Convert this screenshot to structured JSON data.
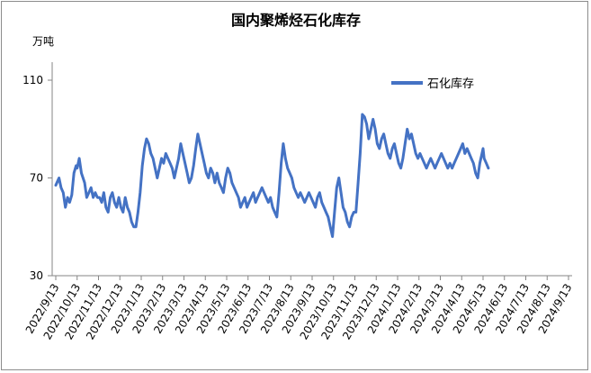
{
  "chart_data": {
    "type": "line",
    "title": "国内聚烯烃石化库存",
    "unit_label": "万吨",
    "xlabel": "",
    "ylabel": "",
    "ylim": [
      30,
      110
    ],
    "yticks": [
      30,
      70,
      110
    ],
    "grid": false,
    "legend_position": "top-right",
    "categories": [
      "2022/9/13",
      "2022/10/13",
      "2022/11/13",
      "2022/12/13",
      "2023/1/13",
      "2023/2/13",
      "2023/3/13",
      "2023/4/13",
      "2023/5/13",
      "2023/6/13",
      "2023/7/13",
      "2023/8/13",
      "2023/9/13",
      "2023/10/13",
      "2023/11/13",
      "2023/12/13",
      "2024/1/13",
      "2024/2/13",
      "2024/3/13",
      "2024/4/13",
      "2024/5/13",
      "2024/6/13",
      "2024/7/13",
      "2024/8/13",
      "2024/9/13"
    ],
    "series": [
      {
        "name": "石化库存",
        "color": "#4472c4",
        "points": [
          [
            0.0,
            67
          ],
          [
            0.15,
            70
          ],
          [
            0.25,
            66
          ],
          [
            0.35,
            64
          ],
          [
            0.45,
            58
          ],
          [
            0.55,
            62
          ],
          [
            0.65,
            60
          ],
          [
            0.75,
            63
          ],
          [
            0.85,
            72
          ],
          [
            0.95,
            75
          ],
          [
            1.0,
            74
          ],
          [
            1.1,
            78
          ],
          [
            1.2,
            72
          ],
          [
            1.35,
            68
          ],
          [
            1.45,
            62
          ],
          [
            1.55,
            64
          ],
          [
            1.65,
            66
          ],
          [
            1.75,
            62
          ],
          [
            1.85,
            64
          ],
          [
            1.95,
            62
          ],
          [
            2.05,
            62
          ],
          [
            2.15,
            60
          ],
          [
            2.25,
            64
          ],
          [
            2.35,
            58
          ],
          [
            2.45,
            56
          ],
          [
            2.55,
            62
          ],
          [
            2.65,
            64
          ],
          [
            2.75,
            60
          ],
          [
            2.85,
            58
          ],
          [
            2.95,
            62
          ],
          [
            3.05,
            58
          ],
          [
            3.15,
            56
          ],
          [
            3.25,
            62
          ],
          [
            3.35,
            58
          ],
          [
            3.45,
            56
          ],
          [
            3.55,
            52
          ],
          [
            3.65,
            50
          ],
          [
            3.75,
            50
          ],
          [
            3.85,
            56
          ],
          [
            3.95,
            64
          ],
          [
            4.05,
            75
          ],
          [
            4.15,
            82
          ],
          [
            4.25,
            86
          ],
          [
            4.35,
            84
          ],
          [
            4.45,
            80
          ],
          [
            4.55,
            78
          ],
          [
            4.65,
            74
          ],
          [
            4.75,
            70
          ],
          [
            4.85,
            74
          ],
          [
            4.95,
            78
          ],
          [
            5.05,
            76
          ],
          [
            5.15,
            80
          ],
          [
            5.25,
            78
          ],
          [
            5.35,
            76
          ],
          [
            5.45,
            74
          ],
          [
            5.55,
            70
          ],
          [
            5.65,
            74
          ],
          [
            5.75,
            78
          ],
          [
            5.85,
            84
          ],
          [
            5.95,
            80
          ],
          [
            6.05,
            76
          ],
          [
            6.15,
            72
          ],
          [
            6.25,
            68
          ],
          [
            6.35,
            70
          ],
          [
            6.45,
            75
          ],
          [
            6.55,
            82
          ],
          [
            6.65,
            88
          ],
          [
            6.75,
            84
          ],
          [
            6.85,
            80
          ],
          [
            6.95,
            76
          ],
          [
            7.05,
            72
          ],
          [
            7.15,
            70
          ],
          [
            7.25,
            74
          ],
          [
            7.35,
            72
          ],
          [
            7.45,
            68
          ],
          [
            7.55,
            72
          ],
          [
            7.65,
            68
          ],
          [
            7.75,
            66
          ],
          [
            7.85,
            64
          ],
          [
            7.95,
            70
          ],
          [
            8.05,
            74
          ],
          [
            8.15,
            72
          ],
          [
            8.25,
            68
          ],
          [
            8.35,
            66
          ],
          [
            8.45,
            64
          ],
          [
            8.55,
            62
          ],
          [
            8.65,
            58
          ],
          [
            8.75,
            60
          ],
          [
            8.85,
            62
          ],
          [
            8.95,
            58
          ],
          [
            9.05,
            60
          ],
          [
            9.15,
            62
          ],
          [
            9.25,
            64
          ],
          [
            9.35,
            60
          ],
          [
            9.45,
            62
          ],
          [
            9.55,
            64
          ],
          [
            9.65,
            66
          ],
          [
            9.75,
            64
          ],
          [
            9.85,
            62
          ],
          [
            9.95,
            60
          ],
          [
            10.05,
            62
          ],
          [
            10.15,
            58
          ],
          [
            10.25,
            56
          ],
          [
            10.35,
            54
          ],
          [
            10.45,
            64
          ],
          [
            10.55,
            76
          ],
          [
            10.65,
            84
          ],
          [
            10.75,
            78
          ],
          [
            10.85,
            74
          ],
          [
            10.95,
            72
          ],
          [
            11.05,
            70
          ],
          [
            11.15,
            66
          ],
          [
            11.25,
            64
          ],
          [
            11.35,
            62
          ],
          [
            11.45,
            64
          ],
          [
            11.55,
            62
          ],
          [
            11.65,
            60
          ],
          [
            11.75,
            62
          ],
          [
            11.85,
            64
          ],
          [
            11.95,
            62
          ],
          [
            12.05,
            60
          ],
          [
            12.15,
            58
          ],
          [
            12.25,
            62
          ],
          [
            12.35,
            64
          ],
          [
            12.45,
            60
          ],
          [
            12.55,
            58
          ],
          [
            12.65,
            56
          ],
          [
            12.75,
            54
          ],
          [
            12.85,
            50
          ],
          [
            12.95,
            46
          ],
          [
            13.05,
            56
          ],
          [
            13.15,
            66
          ],
          [
            13.25,
            70
          ],
          [
            13.35,
            64
          ],
          [
            13.45,
            58
          ],
          [
            13.55,
            56
          ],
          [
            13.65,
            52
          ],
          [
            13.75,
            50
          ],
          [
            13.85,
            54
          ],
          [
            13.95,
            56
          ],
          [
            14.05,
            56
          ],
          [
            14.15,
            68
          ],
          [
            14.25,
            80
          ],
          [
            14.35,
            96
          ],
          [
            14.45,
            95
          ],
          [
            14.55,
            92
          ],
          [
            14.65,
            86
          ],
          [
            14.75,
            90
          ],
          [
            14.85,
            94
          ],
          [
            14.95,
            90
          ],
          [
            15.05,
            84
          ],
          [
            15.15,
            82
          ],
          [
            15.25,
            86
          ],
          [
            15.35,
            88
          ],
          [
            15.45,
            84
          ],
          [
            15.55,
            80
          ],
          [
            15.65,
            78
          ],
          [
            15.75,
            82
          ],
          [
            15.85,
            84
          ],
          [
            15.95,
            80
          ],
          [
            16.05,
            76
          ],
          [
            16.15,
            74
          ],
          [
            16.25,
            78
          ],
          [
            16.35,
            84
          ],
          [
            16.45,
            90
          ],
          [
            16.55,
            86
          ],
          [
            16.65,
            88
          ],
          [
            16.75,
            84
          ],
          [
            16.85,
            80
          ],
          [
            16.95,
            78
          ],
          [
            17.05,
            80
          ],
          [
            17.15,
            78
          ],
          [
            17.25,
            76
          ],
          [
            17.35,
            74
          ],
          [
            17.45,
            76
          ],
          [
            17.55,
            78
          ],
          [
            17.65,
            76
          ],
          [
            17.75,
            74
          ],
          [
            17.85,
            76
          ],
          [
            17.95,
            78
          ],
          [
            18.05,
            80
          ],
          [
            18.15,
            78
          ],
          [
            18.25,
            76
          ],
          [
            18.35,
            74
          ],
          [
            18.45,
            76
          ],
          [
            18.55,
            74
          ],
          [
            18.65,
            76
          ],
          [
            18.75,
            78
          ],
          [
            18.85,
            80
          ],
          [
            18.95,
            82
          ],
          [
            19.05,
            84
          ],
          [
            19.15,
            80
          ],
          [
            19.25,
            82
          ],
          [
            19.35,
            80
          ],
          [
            19.45,
            78
          ],
          [
            19.55,
            76
          ],
          [
            19.65,
            72
          ],
          [
            19.75,
            70
          ],
          [
            19.85,
            76
          ],
          [
            19.95,
            80
          ],
          [
            20.0,
            82
          ],
          [
            20.05,
            78
          ],
          [
            20.15,
            76
          ],
          [
            20.25,
            74
          ]
        ]
      }
    ]
  }
}
